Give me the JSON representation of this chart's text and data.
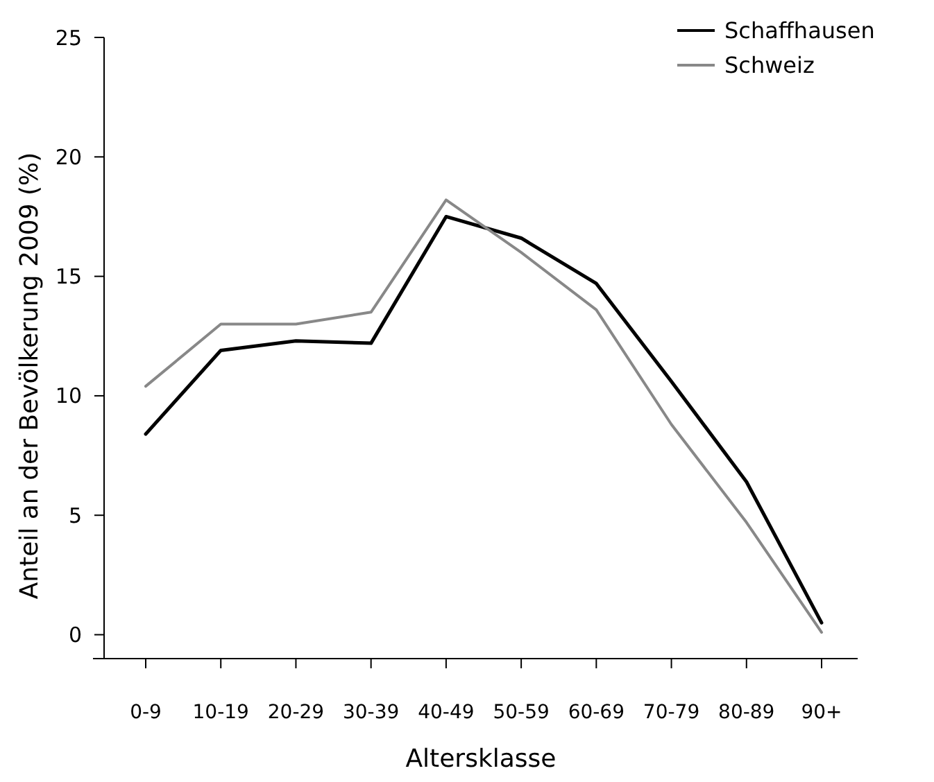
{
  "chart_data": {
    "type": "line",
    "xlabel": "Altersklasse",
    "ylabel": "Anteil an der Bevölkerung 2009 (%)",
    "categories": [
      "0-9",
      "10-19",
      "20-29",
      "30-39",
      "40-49",
      "50-59",
      "60-69",
      "70-79",
      "80-89",
      "90+"
    ],
    "series": [
      {
        "name": "Schaffhausen",
        "color": "#000000",
        "values": [
          8.4,
          11.9,
          12.3,
          12.2,
          17.5,
          16.6,
          14.7,
          10.6,
          6.4,
          0.5
        ]
      },
      {
        "name": "Schweiz",
        "color": "#888888",
        "values": [
          10.4,
          13.0,
          13.0,
          13.5,
          18.2,
          16.0,
          13.6,
          8.8,
          4.7,
          0.1
        ]
      }
    ],
    "ylim": [
      -1,
      25
    ],
    "yticks": [
      0,
      5,
      10,
      15,
      20,
      25
    ],
    "grid": false,
    "legend": "top right",
    "marker": "none",
    "line_style": "solid"
  }
}
